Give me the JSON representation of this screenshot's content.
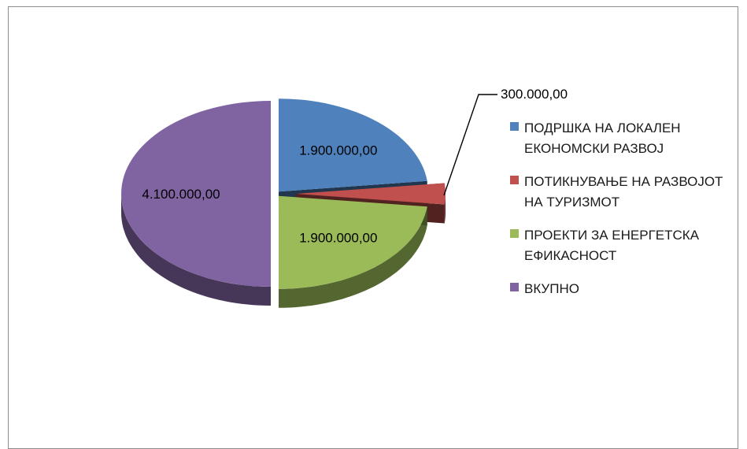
{
  "chart_data": {
    "type": "pie",
    "is_3d": true,
    "exploded": true,
    "categories": [
      "ПОДРШКА НА ЛОКАЛЕН ЕКОНОМСКИ РАЗВОЈ",
      "ПОТИКНУВАЊЕ НА РАЗВОЈОТ НА ТУРИЗМОТ",
      "ПРОЕКТИ ЗА ЕНЕРГЕТСКА ЕФИКАСНОСТ",
      "ВКУПНО"
    ],
    "values": [
      1900000,
      300000,
      1900000,
      4100000
    ],
    "data_labels": [
      "1.900.000,00",
      "300.000,00",
      "1.900.000,00",
      "4.100.000,00"
    ],
    "colors": [
      "#4f81bd",
      "#c0504d",
      "#9bbb59",
      "#8064a2"
    ],
    "legend_position": "right"
  },
  "legend": {
    "items": [
      {
        "label": "ПОДРШКА НА ЛОКАЛЕН\nЕКОНОМСКИ РАЗВОЈ",
        "color": "#4f81bd"
      },
      {
        "label": "ПОТИКНУВАЊЕ НА РАЗВОЈОТ\nНА ТУРИЗМОТ",
        "color": "#c0504d"
      },
      {
        "label": "ПРОЕКТИ ЗА ЕНЕРГЕТСКА\nЕФИКАСНОСТ",
        "color": "#9bbb59"
      },
      {
        "label": "ВКУПНО",
        "color": "#8064a2"
      }
    ]
  }
}
